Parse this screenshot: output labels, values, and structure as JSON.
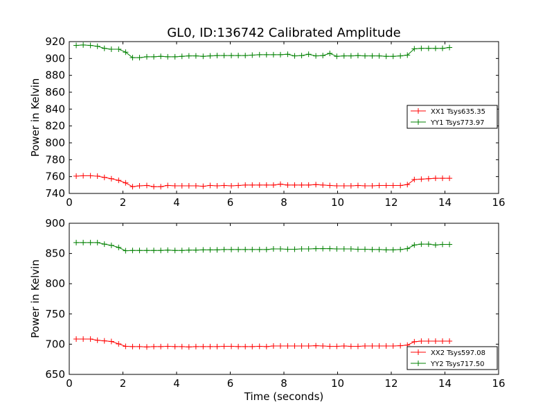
{
  "title": "GL0, ID:136742 Calibrated Amplitude",
  "chart_data": [
    {
      "type": "line",
      "ylabel": "Power in Kelvin",
      "xlabel": "",
      "xlim": [
        0,
        16
      ],
      "ylim": [
        740,
        920
      ],
      "xticks": [
        0,
        2,
        4,
        6,
        8,
        10,
        12,
        14,
        16
      ],
      "yticks": [
        740,
        760,
        780,
        800,
        820,
        840,
        860,
        880,
        900,
        920
      ],
      "grid": false,
      "legend_position": "center-right",
      "x": [
        0.26,
        0.52,
        0.79,
        1.05,
        1.31,
        1.57,
        1.84,
        2.1,
        2.36,
        2.62,
        2.89,
        3.15,
        3.41,
        3.67,
        3.94,
        4.2,
        4.46,
        4.72,
        4.99,
        5.25,
        5.51,
        5.77,
        6.04,
        6.3,
        6.56,
        6.82,
        7.09,
        7.35,
        7.61,
        7.87,
        8.14,
        8.4,
        8.66,
        8.92,
        9.19,
        9.45,
        9.71,
        9.97,
        10.24,
        10.5,
        10.76,
        11.02,
        11.29,
        11.55,
        11.81,
        12.07,
        12.34,
        12.6,
        12.86,
        13.12,
        13.39,
        13.65,
        13.91,
        14.17
      ],
      "series": [
        {
          "name": "XX1 Tsys635.35",
          "color": "#ff0000",
          "values": [
            760.5,
            761,
            761,
            760.5,
            759,
            757.5,
            755.5,
            752.5,
            748,
            749,
            749.5,
            748,
            748,
            749.5,
            749,
            749,
            749,
            749,
            748.5,
            749.5,
            749,
            749.5,
            749,
            749.5,
            750,
            750,
            750,
            750,
            750,
            751,
            750,
            750,
            750,
            750,
            750.5,
            750,
            749.5,
            749,
            749,
            749,
            749.5,
            749,
            749,
            749.5,
            749.5,
            749.5,
            749.5,
            750.5,
            756.5,
            757,
            757.5,
            758,
            758,
            758
          ]
        },
        {
          "name": "YY1 Tsys773.97",
          "color": "#008000",
          "values": [
            915.5,
            916,
            915.5,
            914.5,
            912,
            911,
            911,
            907.5,
            901,
            901,
            902,
            902,
            902.5,
            902,
            902,
            902.5,
            903,
            903,
            902.5,
            903,
            903.5,
            903.5,
            903.5,
            903.5,
            903.5,
            904,
            904.5,
            904.5,
            904.5,
            904.5,
            905,
            903,
            903.5,
            905,
            903,
            903.5,
            906,
            902.5,
            903,
            903,
            903.5,
            903,
            903,
            903,
            902.5,
            902.5,
            903,
            904,
            911.5,
            912,
            912,
            912,
            912,
            913
          ]
        }
      ]
    },
    {
      "type": "line",
      "ylabel": "Power in Kelvin",
      "xlabel": "Time (seconds)",
      "xlim": [
        0,
        16
      ],
      "ylim": [
        650,
        900
      ],
      "xticks": [
        0,
        2,
        4,
        6,
        8,
        10,
        12,
        14,
        16
      ],
      "yticks": [
        650,
        700,
        750,
        800,
        850,
        900
      ],
      "grid": false,
      "legend_position": "bottom-right",
      "x": [
        0.26,
        0.52,
        0.79,
        1.05,
        1.31,
        1.57,
        1.84,
        2.1,
        2.36,
        2.62,
        2.89,
        3.15,
        3.41,
        3.67,
        3.94,
        4.2,
        4.46,
        4.72,
        4.99,
        5.25,
        5.51,
        5.77,
        6.04,
        6.3,
        6.56,
        6.82,
        7.09,
        7.35,
        7.61,
        7.87,
        8.14,
        8.4,
        8.66,
        8.92,
        9.19,
        9.45,
        9.71,
        9.97,
        10.24,
        10.5,
        10.76,
        11.02,
        11.29,
        11.55,
        11.81,
        12.07,
        12.34,
        12.6,
        12.86,
        13.12,
        13.39,
        13.65,
        13.91,
        14.17
      ],
      "series": [
        {
          "name": "XX2 Tsys597.08",
          "color": "#ff0000",
          "values": [
            708.5,
            708.5,
            708.5,
            706.5,
            705.5,
            704.5,
            700.5,
            696.5,
            696,
            696,
            695.5,
            696,
            696,
            696.5,
            696,
            696,
            695.5,
            696,
            696,
            696,
            696,
            696.5,
            696.5,
            696,
            696,
            696,
            696.5,
            696,
            697,
            697,
            697,
            697,
            697,
            697,
            697.5,
            697,
            696.5,
            696.5,
            697,
            696.5,
            696.5,
            697,
            697,
            697,
            697,
            697,
            697.5,
            698.5,
            704,
            705,
            705,
            705,
            705,
            705
          ]
        },
        {
          "name": "YY2 Tsys717.50",
          "color": "#008000",
          "values": [
            868,
            868,
            868,
            868,
            865.5,
            863.5,
            860,
            854.5,
            855,
            855,
            855,
            855,
            855,
            855.5,
            855,
            855,
            855.5,
            855.5,
            856,
            856,
            856,
            856.5,
            856.5,
            856.5,
            856.5,
            856.5,
            856.5,
            856.5,
            857.5,
            857.5,
            857,
            857,
            857.5,
            857.5,
            858,
            858,
            858,
            857.5,
            857.5,
            857.5,
            857,
            857,
            856.5,
            856.5,
            856,
            856,
            856.5,
            858,
            864,
            865.5,
            865.5,
            864,
            865,
            865
          ]
        }
      ]
    }
  ]
}
